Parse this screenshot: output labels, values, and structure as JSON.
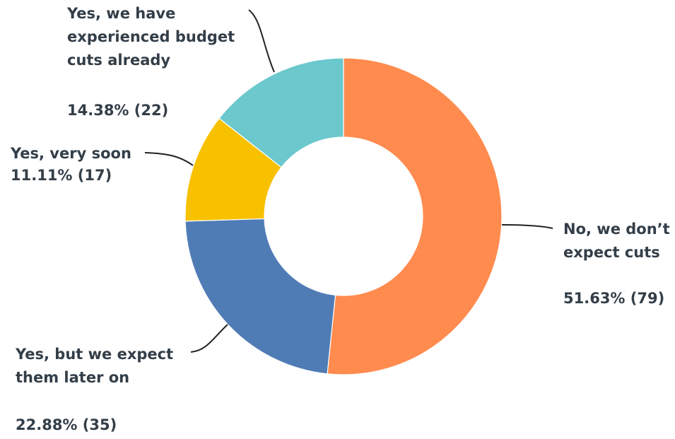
{
  "chart_data": {
    "type": "pie",
    "title": "",
    "donut": true,
    "slices": [
      {
        "name_lines": [
          "No, we don’t",
          "expect cuts"
        ],
        "percent_label": "51.63% (79)",
        "value": 79,
        "percent": 51.63,
        "color": "#ff8b4f"
      },
      {
        "name_lines": [
          "Yes, but we expect",
          "them later on"
        ],
        "percent_label": "22.88% (35)",
        "value": 35,
        "percent": 22.88,
        "color": "#507cb6"
      },
      {
        "name_lines": [
          "Yes, very soon"
        ],
        "percent_label": "11.11% (17)",
        "value": 17,
        "percent": 11.11,
        "color": "#f7c100"
      },
      {
        "name_lines": [
          "Yes, we have",
          "experienced budget",
          "cuts already"
        ],
        "percent_label": "14.38% (22)",
        "value": 22,
        "percent": 14.38,
        "color": "#6bc8cd"
      }
    ]
  }
}
